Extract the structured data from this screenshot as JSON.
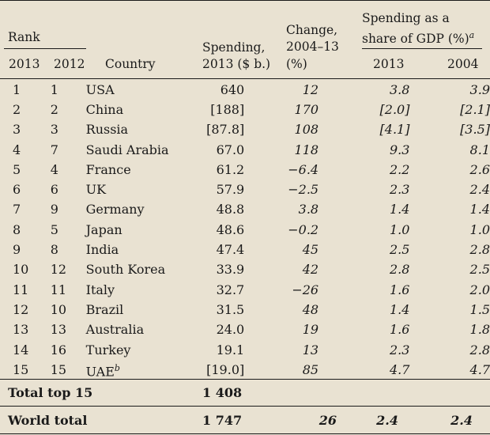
{
  "header": {
    "rank": "Rank",
    "rank_2013": "2013",
    "rank_2012": "2012",
    "country": "Country",
    "spending_l1": "Spending,",
    "spending_l2": "2013 ($ b.)",
    "change_l1": "Change,",
    "change_l2": "2004–13",
    "change_l3": "(%)",
    "share_l1": "Spending as a",
    "share_l2": "share of GDP (%)",
    "share_note": "a",
    "share_2013": "2013",
    "share_2004": "2004"
  },
  "rows": [
    {
      "r13": "1",
      "r12": "1",
      "country": "USA",
      "note": "",
      "spend": "640",
      "change": "12",
      "s13": "3.8",
      "s04": "3.9"
    },
    {
      "r13": "2",
      "r12": "2",
      "country": "China",
      "note": "",
      "spend": "[188]",
      "change": "170",
      "s13": "[2.0]",
      "s04": "[2.1]"
    },
    {
      "r13": "3",
      "r12": "3",
      "country": "Russia",
      "note": "",
      "spend": "[87.8]",
      "change": "108",
      "s13": "[4.1]",
      "s04": "[3.5]"
    },
    {
      "r13": "4",
      "r12": "7",
      "country": "Saudi Arabia",
      "note": "",
      "spend": "67.0",
      "change": "118",
      "s13": "9.3",
      "s04": "8.1"
    },
    {
      "r13": "5",
      "r12": "4",
      "country": "France",
      "note": "",
      "spend": "61.2",
      "change": "−6.4",
      "s13": "2.2",
      "s04": "2.6"
    },
    {
      "r13": "6",
      "r12": "6",
      "country": "UK",
      "note": "",
      "spend": "57.9",
      "change": "−2.5",
      "s13": "2.3",
      "s04": "2.4"
    },
    {
      "r13": "7",
      "r12": "9",
      "country": "Germany",
      "note": "",
      "spend": "48.8",
      "change": "3.8",
      "s13": "1.4",
      "s04": "1.4"
    },
    {
      "r13": "8",
      "r12": "5",
      "country": "Japan",
      "note": "",
      "spend": "48.6",
      "change": "−0.2",
      "s13": "1.0",
      "s04": "1.0"
    },
    {
      "r13": "9",
      "r12": "8",
      "country": "India",
      "note": "",
      "spend": "47.4",
      "change": "45",
      "s13": "2.5",
      "s04": "2.8"
    },
    {
      "r13": "10",
      "r12": "12",
      "country": "South Korea",
      "note": "",
      "spend": "33.9",
      "change": "42",
      "s13": "2.8",
      "s04": "2.5"
    },
    {
      "r13": "11",
      "r12": "11",
      "country": "Italy",
      "note": "",
      "spend": "32.7",
      "change": "−26",
      "s13": "1.6",
      "s04": "2.0"
    },
    {
      "r13": "12",
      "r12": "10",
      "country": "Brazil",
      "note": "",
      "spend": "31.5",
      "change": "48",
      "s13": "1.4",
      "s04": "1.5"
    },
    {
      "r13": "13",
      "r12": "13",
      "country": "Australia",
      "note": "",
      "spend": "24.0",
      "change": "19",
      "s13": "1.6",
      "s04": "1.8"
    },
    {
      "r13": "14",
      "r12": "16",
      "country": "Turkey",
      "note": "",
      "spend": "19.1",
      "change": "13",
      "s13": "2.3",
      "s04": "2.8"
    },
    {
      "r13": "15",
      "r12": "15",
      "country": "UAE",
      "note": "b",
      "spend": "[19.0]",
      "change": "85",
      "s13": "4.7",
      "s04": "4.7"
    }
  ],
  "totals": {
    "top15_label": "Total top 15",
    "top15_spend": "1 408",
    "world_label": "World total",
    "world_spend": "1 747",
    "world_change": "26",
    "world_s13": "2.4",
    "world_s04": "2.4"
  },
  "colors": {
    "background": "#e9e2d2",
    "text": "#1a1a1a"
  }
}
